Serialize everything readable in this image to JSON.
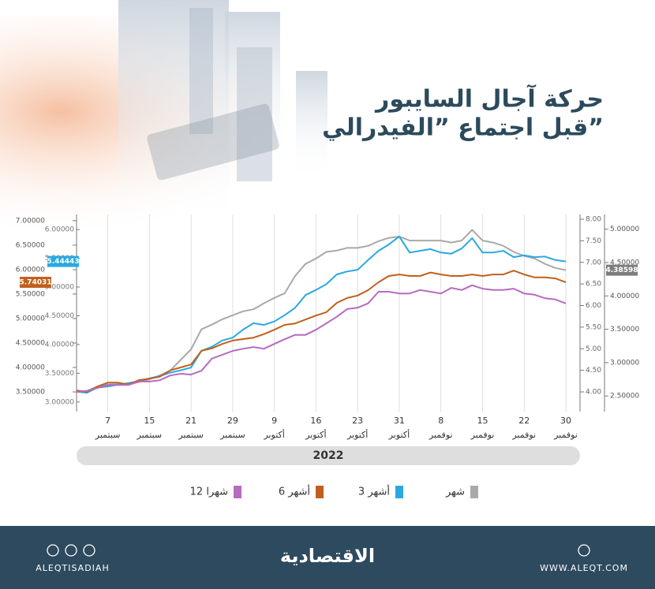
{
  "chart_data": {
    "type": "line",
    "title": "حركة آجال السايبور",
    "subtitle": "قبل اجتماع ”الفيدرالي”",
    "x_label": "2022",
    "grid": true,
    "categories": [
      null,
      null,
      null,
      "7 سبتمبر",
      null,
      null,
      null,
      "15 سبتمبر",
      null,
      null,
      null,
      "21 سبتمبر",
      null,
      null,
      null,
      "29 سبتمبر",
      null,
      null,
      null,
      "9 أكتوبر",
      null,
      null,
      null,
      "16 أكتوبر",
      null,
      null,
      null,
      "23 أكتوبر",
      null,
      null,
      null,
      "31 أكتوبر",
      null,
      null,
      null,
      "8 نوفمبر",
      null,
      null,
      null,
      "15 نوفمبر",
      null,
      null,
      null,
      "22 نوفمبر",
      null,
      null,
      null,
      "30 نوفمبر"
    ],
    "ylim": [
      3.13,
      7.03
    ],
    "yticks": [
      {
        "value": 3.5,
        "label": "3.50000"
      },
      {
        "value": 4,
        "label": "4.00000"
      },
      {
        "value": 4.5,
        "label": "4.50000"
      },
      {
        "value": 5,
        "label": "5.00000"
      },
      {
        "value": 5.5,
        "label": "5.50000"
      },
      {
        "value": 6,
        "label": "6.00000"
      },
      {
        "value": 6.5,
        "label": "6.50000"
      },
      {
        "value": 7,
        "label": "7.00000"
      }
    ],
    "y2lim": [
      2.29,
      5.15
    ],
    "y2ticks": [
      {
        "value": 2.5,
        "label": "2.50000"
      },
      {
        "value": 3,
        "label": "3.00000"
      },
      {
        "value": 3.5,
        "label": "3.50000"
      },
      {
        "value": 4,
        "label": "4.00000"
      },
      {
        "value": 4.5,
        "label": "4.50000"
      },
      {
        "value": 5,
        "label": "5.00000"
      }
    ],
    "y3lim": [
      2.86,
      6.18
    ],
    "y3ticks": [
      {
        "value": 3,
        "label": "3.00000"
      },
      {
        "value": 3.5,
        "label": "3.50000"
      },
      {
        "value": 4,
        "label": "4.00000"
      },
      {
        "value": 4.5,
        "label": "4.50000"
      },
      {
        "value": 5,
        "label": "5.00000"
      },
      {
        "value": 5.5,
        "label": "5.50000"
      },
      {
        "value": 6,
        "label": "6.00000"
      }
    ],
    "y4lim": [
      3.58,
      8.0
    ],
    "y4ticks": [
      {
        "value": 4,
        "label": "4.00"
      },
      {
        "value": 4.5,
        "label": "4.50"
      },
      {
        "value": 5,
        "label": "5.00"
      },
      {
        "value": 5.5,
        "label": "5.50"
      },
      {
        "value": 6,
        "label": "6.00"
      },
      {
        "value": 6.5,
        "label": "6.50"
      },
      {
        "value": 7,
        "label": "7.00"
      },
      {
        "value": 7.5,
        "label": "7.50"
      },
      {
        "value": 8,
        "label": "8.00"
      }
    ],
    "series": [
      {
        "name": "شهر",
        "color": "#a9a9a9",
        "axis": "y2",
        "values": [
          2.56,
          2.58,
          2.64,
          2.67,
          2.68,
          2.68,
          2.71,
          2.75,
          2.81,
          2.88,
          3.04,
          3.2,
          3.5,
          3.57,
          3.65,
          3.71,
          3.77,
          3.8,
          3.89,
          3.97,
          4.04,
          4.3,
          4.48,
          4.56,
          4.66,
          4.68,
          4.72,
          4.72,
          4.75,
          4.82,
          4.87,
          4.89,
          4.83,
          4.83,
          4.83,
          4.83,
          4.8,
          4.83,
          4.99,
          4.83,
          4.8,
          4.75,
          4.66,
          4.6,
          4.56,
          4.48,
          4.42,
          4.38598
        ]
      },
      {
        "name": "3 أشهر",
        "color": "#2aa9e0",
        "axis": "y3",
        "values": [
          3.18,
          3.16,
          3.25,
          3.27,
          3.3,
          3.33,
          3.36,
          3.41,
          3.45,
          3.51,
          3.55,
          3.6,
          3.89,
          3.96,
          4.07,
          4.12,
          4.26,
          4.37,
          4.34,
          4.4,
          4.51,
          4.64,
          4.86,
          4.95,
          5.05,
          5.22,
          5.27,
          5.3,
          5.47,
          5.63,
          5.74,
          5.88,
          5.6,
          5.63,
          5.66,
          5.6,
          5.58,
          5.67,
          5.85,
          5.6,
          5.6,
          5.63,
          5.52,
          5.55,
          5.52,
          5.53,
          5.47,
          5.44443
        ]
      },
      {
        "name": "6 أشهر",
        "color": "#c0601c",
        "axis": "y",
        "values": [
          3.53,
          3.5,
          3.61,
          3.69,
          3.69,
          3.65,
          3.74,
          3.77,
          3.81,
          3.94,
          4.0,
          4.06,
          4.34,
          4.39,
          4.48,
          4.55,
          4.58,
          4.61,
          4.68,
          4.77,
          4.87,
          4.9,
          4.98,
          5.06,
          5.13,
          5.32,
          5.42,
          5.47,
          5.58,
          5.74,
          5.87,
          5.9,
          5.87,
          5.87,
          5.94,
          5.9,
          5.87,
          5.87,
          5.9,
          5.87,
          5.9,
          5.9,
          5.98,
          5.9,
          5.84,
          5.84,
          5.82,
          5.74031
        ]
      },
      {
        "name": "12 شهرا",
        "color": "#b66bc1",
        "axis": "y4",
        "values": [
          4.0,
          4.02,
          4.09,
          4.16,
          4.16,
          4.16,
          4.24,
          4.24,
          4.27,
          4.38,
          4.42,
          4.4,
          4.49,
          4.77,
          4.86,
          4.95,
          5.0,
          5.04,
          5.0,
          5.11,
          5.22,
          5.32,
          5.32,
          5.44,
          5.59,
          5.74,
          5.92,
          5.95,
          6.05,
          6.32,
          6.32,
          6.28,
          6.28,
          6.36,
          6.32,
          6.28,
          6.41,
          6.36,
          6.47,
          6.39,
          6.36,
          6.36,
          6.39,
          6.28,
          6.25,
          6.17,
          6.14,
          6.05
        ]
      }
    ]
  },
  "footer": {
    "handle": "ALEQTISADIAH",
    "logo": "الاقتصادية",
    "website": "WWW.ALEQT.COM"
  }
}
